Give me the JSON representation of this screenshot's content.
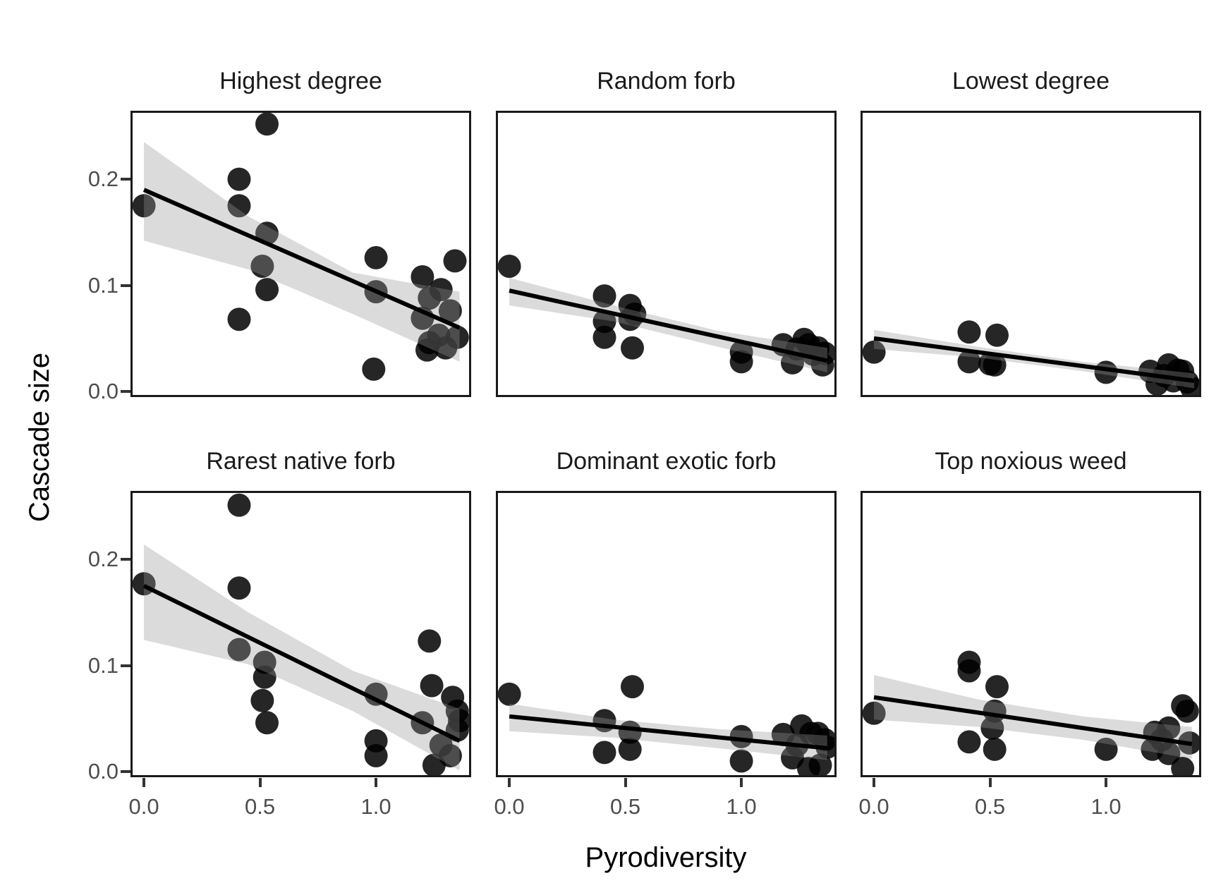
{
  "figure": {
    "x_axis_label": "Pyrodiversity",
    "y_axis_label": "Cascade size",
    "x_ticks": [
      {
        "label": "0.0",
        "value": 0.0
      },
      {
        "label": "0.5",
        "value": 0.5
      },
      {
        "label": "1.0",
        "value": 1.0
      }
    ],
    "y_ticks": [
      {
        "label": "0.2",
        "value": 0.2
      },
      {
        "label": "0.1",
        "value": 0.1
      },
      {
        "label": "0.0",
        "value": 0.0
      }
    ],
    "style": {
      "background": "#ffffff",
      "point_color": "#000000",
      "point_opacity": 0.85,
      "point_radius": 16.5,
      "band_color": "#999999",
      "band_opacity": 0.35,
      "line_color": "#000000",
      "line_width": 6,
      "border_color": "#1a1a1a",
      "tick_label_color": "#4d4d4d",
      "title_color": "#1a1a1a"
    }
  },
  "chart_data": [
    {
      "type": "scatter",
      "title": "Highest degree",
      "xlabel": "Pyrodiversity",
      "ylabel": "Cascade size",
      "xlim": [
        -0.058,
        1.41
      ],
      "ylim": [
        -0.0053,
        0.2645
      ],
      "grid": false,
      "points": [
        [
          0.0,
          0.175
        ],
        [
          0.41,
          0.2
        ],
        [
          0.41,
          0.175
        ],
        [
          0.41,
          0.068
        ],
        [
          0.53,
          0.252
        ],
        [
          0.53,
          0.149
        ],
        [
          0.51,
          0.118
        ],
        [
          0.53,
          0.096
        ],
        [
          1.0,
          0.126
        ],
        [
          1.0,
          0.094
        ],
        [
          0.99,
          0.021
        ],
        [
          1.2,
          0.108
        ],
        [
          1.2,
          0.069
        ],
        [
          1.22,
          0.039
        ],
        [
          1.23,
          0.088
        ],
        [
          1.23,
          0.046
        ],
        [
          1.27,
          0.053
        ],
        [
          1.28,
          0.096
        ],
        [
          1.3,
          0.041
        ],
        [
          1.32,
          0.076
        ],
        [
          1.34,
          0.123
        ],
        [
          1.35,
          0.051
        ]
      ],
      "trend": {
        "x": [
          0.0,
          1.36
        ],
        "y": [
          0.19,
          0.06
        ]
      },
      "ci_band": {
        "x": [
          0.0,
          0.45,
          0.9,
          1.36
        ],
        "upper": [
          0.235,
          0.165,
          0.112,
          0.094
        ],
        "lower": [
          0.142,
          0.115,
          0.073,
          0.028
        ]
      }
    },
    {
      "type": "scatter",
      "title": "Random forb",
      "xlabel": "Pyrodiversity",
      "ylabel": "Cascade size",
      "xlim": [
        -0.058,
        1.41
      ],
      "ylim": [
        -0.0053,
        0.2645
      ],
      "grid": false,
      "points": [
        [
          0.0,
          0.118
        ],
        [
          0.41,
          0.09
        ],
        [
          0.41,
          0.066
        ],
        [
          0.41,
          0.051
        ],
        [
          0.52,
          0.081
        ],
        [
          0.54,
          0.073
        ],
        [
          0.52,
          0.068
        ],
        [
          0.53,
          0.041
        ],
        [
          1.0,
          0.037
        ],
        [
          1.0,
          0.028
        ],
        [
          1.18,
          0.044
        ],
        [
          1.22,
          0.027
        ],
        [
          1.24,
          0.04
        ],
        [
          1.27,
          0.049
        ],
        [
          1.29,
          0.044
        ],
        [
          1.31,
          0.035
        ],
        [
          1.33,
          0.041
        ],
        [
          1.35,
          0.025
        ],
        [
          1.36,
          0.036
        ]
      ],
      "trend": {
        "x": [
          0.0,
          1.37
        ],
        "y": [
          0.095,
          0.029
        ]
      },
      "ci_band": {
        "x": [
          0.0,
          0.45,
          0.9,
          1.37
        ],
        "upper": [
          0.107,
          0.081,
          0.057,
          0.041
        ],
        "lower": [
          0.081,
          0.066,
          0.042,
          0.018
        ]
      }
    },
    {
      "type": "scatter",
      "title": "Lowest degree",
      "xlabel": "Pyrodiversity",
      "ylabel": "Cascade size",
      "xlim": [
        -0.058,
        1.41
      ],
      "ylim": [
        -0.0053,
        0.2645
      ],
      "grid": false,
      "points": [
        [
          0.0,
          0.037
        ],
        [
          0.41,
          0.056
        ],
        [
          0.41,
          0.028
        ],
        [
          0.53,
          0.053
        ],
        [
          0.5,
          0.026
        ],
        [
          0.52,
          0.025
        ],
        [
          1.0,
          0.018
        ],
        [
          1.19,
          0.019
        ],
        [
          1.22,
          0.007
        ],
        [
          1.25,
          0.015
        ],
        [
          1.27,
          0.025
        ],
        [
          1.29,
          0.01
        ],
        [
          1.31,
          0.02
        ],
        [
          1.33,
          0.019
        ],
        [
          1.35,
          0.009
        ],
        [
          1.37,
          0.003
        ]
      ],
      "trend": {
        "x": [
          0.0,
          1.38
        ],
        "y": [
          0.05,
          0.01
        ]
      },
      "ci_band": {
        "x": [
          0.0,
          0.45,
          0.9,
          1.38
        ],
        "upper": [
          0.058,
          0.042,
          0.028,
          0.017
        ],
        "lower": [
          0.04,
          0.032,
          0.019,
          0.003
        ]
      }
    },
    {
      "type": "scatter",
      "title": "Rarest native forb",
      "xlabel": "Pyrodiversity",
      "ylabel": "Cascade size",
      "xlim": [
        -0.058,
        1.41
      ],
      "ylim": [
        -0.0053,
        0.2645
      ],
      "grid": false,
      "points": [
        [
          0.41,
          0.251
        ],
        [
          0.0,
          0.177
        ],
        [
          0.41,
          0.173
        ],
        [
          0.41,
          0.115
        ],
        [
          0.52,
          0.103
        ],
        [
          0.52,
          0.089
        ],
        [
          0.51,
          0.067
        ],
        [
          0.53,
          0.046
        ],
        [
          1.0,
          0.073
        ],
        [
          1.0,
          0.029
        ],
        [
          1.0,
          0.015
        ],
        [
          1.23,
          0.123
        ],
        [
          1.24,
          0.081
        ],
        [
          1.33,
          0.07
        ],
        [
          1.35,
          0.057
        ],
        [
          1.2,
          0.046
        ],
        [
          1.35,
          0.039
        ],
        [
          1.28,
          0.025
        ],
        [
          1.25,
          0.006
        ],
        [
          1.32,
          0.015
        ],
        [
          1.36,
          0.048
        ]
      ],
      "trend": {
        "x": [
          0.0,
          1.36
        ],
        "y": [
          0.175,
          0.029
        ]
      },
      "ci_band": {
        "x": [
          0.0,
          0.45,
          0.9,
          1.36
        ],
        "upper": [
          0.214,
          0.15,
          0.095,
          0.059
        ],
        "lower": [
          0.124,
          0.101,
          0.057,
          0.001
        ]
      }
    },
    {
      "type": "scatter",
      "title": "Dominant exotic forb",
      "xlabel": "Pyrodiversity",
      "ylabel": "Cascade size",
      "xlim": [
        -0.058,
        1.41
      ],
      "ylim": [
        -0.0053,
        0.2645
      ],
      "grid": false,
      "points": [
        [
          0.0,
          0.073
        ],
        [
          0.53,
          0.08
        ],
        [
          0.41,
          0.048
        ],
        [
          0.52,
          0.037
        ],
        [
          0.52,
          0.021
        ],
        [
          0.41,
          0.018
        ],
        [
          1.0,
          0.033
        ],
        [
          1.0,
          0.01
        ],
        [
          1.18,
          0.035
        ],
        [
          1.22,
          0.013
        ],
        [
          1.24,
          0.025
        ],
        [
          1.26,
          0.043
        ],
        [
          1.3,
          0.036
        ],
        [
          1.33,
          0.036
        ],
        [
          1.36,
          0.03
        ],
        [
          1.29,
          0.003
        ],
        [
          1.34,
          0.006
        ],
        [
          1.37,
          0.023
        ]
      ],
      "trend": {
        "x": [
          0.0,
          1.37
        ],
        "y": [
          0.052,
          0.022
        ]
      },
      "ci_band": {
        "x": [
          0.0,
          0.45,
          0.9,
          1.37
        ],
        "upper": [
          0.064,
          0.049,
          0.04,
          0.034
        ],
        "lower": [
          0.038,
          0.032,
          0.022,
          0.011
        ]
      }
    },
    {
      "type": "scatter",
      "title": "Top noxious weed",
      "xlabel": "Pyrodiversity",
      "ylabel": "Cascade size",
      "xlim": [
        -0.058,
        1.41
      ],
      "ylim": [
        -0.0053,
        0.2645
      ],
      "grid": false,
      "points": [
        [
          0.0,
          0.055
        ],
        [
          0.41,
          0.103
        ],
        [
          0.41,
          0.095
        ],
        [
          0.53,
          0.08
        ],
        [
          0.52,
          0.057
        ],
        [
          0.51,
          0.041
        ],
        [
          0.41,
          0.028
        ],
        [
          0.52,
          0.021
        ],
        [
          1.0,
          0.021
        ],
        [
          1.33,
          0.062
        ],
        [
          1.35,
          0.057
        ],
        [
          1.27,
          0.041
        ],
        [
          1.21,
          0.037
        ],
        [
          1.2,
          0.021
        ],
        [
          1.27,
          0.017
        ],
        [
          1.36,
          0.027
        ],
        [
          1.33,
          0.003
        ],
        [
          1.24,
          0.03
        ]
      ],
      "trend": {
        "x": [
          0.0,
          1.37
        ],
        "y": [
          0.07,
          0.026
        ]
      },
      "ci_band": {
        "x": [
          0.0,
          0.45,
          0.9,
          1.37
        ],
        "upper": [
          0.091,
          0.068,
          0.052,
          0.042
        ],
        "lower": [
          0.049,
          0.042,
          0.03,
          0.012
        ]
      }
    }
  ]
}
